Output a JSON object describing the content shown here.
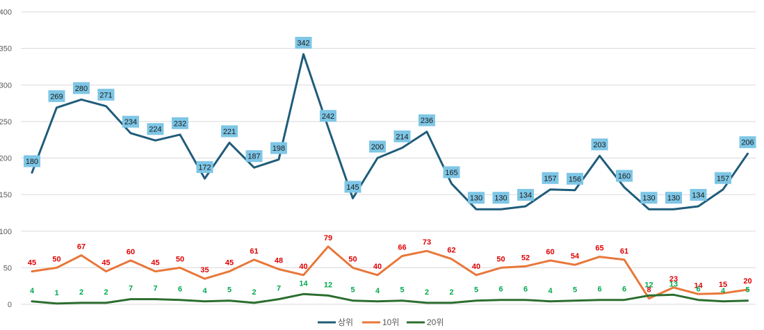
{
  "chart_data": {
    "type": "line",
    "title": "",
    "xlabel": "",
    "ylabel": "",
    "ylim": [
      0,
      400
    ],
    "yticks": [
      0,
      50,
      100,
      150,
      200,
      250,
      300,
      350,
      400
    ],
    "grid": true,
    "legend_position": "bottom",
    "x": [
      1,
      2,
      3,
      4,
      5,
      6,
      7,
      8,
      9,
      10,
      11,
      12,
      13,
      14,
      15,
      16,
      17,
      18,
      19,
      20,
      21,
      22,
      23,
      24,
      25,
      26,
      27,
      28,
      29,
      30
    ],
    "series": [
      {
        "name": "상위",
        "color": "#1f5c7a",
        "label_bg": "#7ec6e6",
        "values": [
          180,
          269,
          280,
          271,
          234,
          224,
          232,
          172,
          221,
          187,
          198,
          342,
          242,
          145,
          200,
          214,
          236,
          165,
          130,
          130,
          134,
          157,
          156,
          203,
          160,
          130,
          130,
          134,
          157,
          206
        ]
      },
      {
        "name": "10위",
        "color": "#e8773a",
        "label_color": "#e00000",
        "values": [
          45,
          50,
          67,
          45,
          60,
          45,
          50,
          35,
          45,
          61,
          48,
          40,
          79,
          50,
          40,
          66,
          73,
          62,
          40,
          50,
          52,
          60,
          54,
          65,
          61,
          8,
          23,
          14,
          15,
          20
        ]
      },
      {
        "name": "20위",
        "color": "#2c6e2e",
        "label_color": "#00a94f",
        "values": [
          4,
          1,
          2,
          2,
          7,
          7,
          6,
          4,
          5,
          2,
          7,
          14,
          12,
          5,
          4,
          5,
          2,
          2,
          5,
          6,
          6,
          4,
          5,
          6,
          6,
          12,
          13,
          6,
          4,
          5
        ]
      }
    ]
  }
}
